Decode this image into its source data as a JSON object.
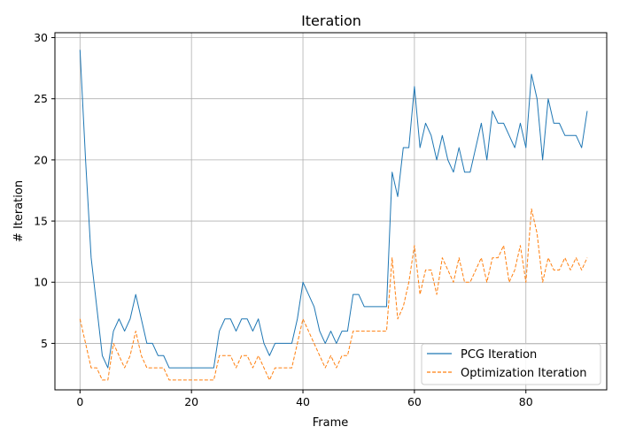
{
  "chart_data": {
    "type": "line",
    "title": "Iteration",
    "xlabel": "Frame",
    "ylabel": "# Iteration",
    "xlim": [
      -4.5,
      94.5
    ],
    "ylim": [
      1.2,
      30.4
    ],
    "xticks": [
      0,
      20,
      40,
      60,
      80
    ],
    "yticks": [
      5,
      10,
      15,
      20,
      25,
      30
    ],
    "grid": true,
    "legend_position": "lower-right",
    "series": [
      {
        "name": "PCG Iteration",
        "color": "#1f77b4",
        "style": "solid",
        "values": [
          29,
          20,
          12,
          8,
          4,
          3,
          6,
          7,
          6,
          7,
          9,
          7,
          5,
          5,
          4,
          4,
          3,
          3,
          3,
          3,
          3,
          3,
          3,
          3,
          3,
          6,
          7,
          7,
          6,
          7,
          7,
          6,
          7,
          5,
          4,
          5,
          5,
          5,
          5,
          7,
          10,
          9,
          8,
          6,
          5,
          6,
          5,
          6,
          6,
          9,
          9,
          8,
          8,
          8,
          8,
          8,
          19,
          17,
          21,
          21,
          26,
          21,
          23,
          22,
          20,
          22,
          20,
          19,
          21,
          19,
          19,
          21,
          23,
          20,
          24,
          23,
          23,
          22,
          21,
          23,
          21,
          27,
          25,
          20,
          25,
          23,
          23,
          22,
          22,
          22,
          21,
          24
        ]
      },
      {
        "name": "Optimization Iteration",
        "color": "#ff7f0e",
        "style": "dashed",
        "values": [
          7,
          5,
          3,
          3,
          2,
          2,
          5,
          4,
          3,
          4,
          6,
          4,
          3,
          3,
          3,
          3,
          2,
          2,
          2,
          2,
          2,
          2,
          2,
          2,
          2,
          4,
          4,
          4,
          3,
          4,
          4,
          3,
          4,
          3,
          2,
          3,
          3,
          3,
          3,
          5,
          7,
          6,
          5,
          4,
          3,
          4,
          3,
          4,
          4,
          6,
          6,
          6,
          6,
          6,
          6,
          6,
          12,
          7,
          8,
          10,
          13,
          9,
          11,
          11,
          9,
          12,
          11,
          10,
          12,
          10,
          10,
          11,
          12,
          10,
          12,
          12,
          13,
          10,
          11,
          13,
          10,
          16,
          14,
          10,
          12,
          11,
          11,
          12,
          11,
          12,
          11,
          12
        ]
      }
    ]
  }
}
